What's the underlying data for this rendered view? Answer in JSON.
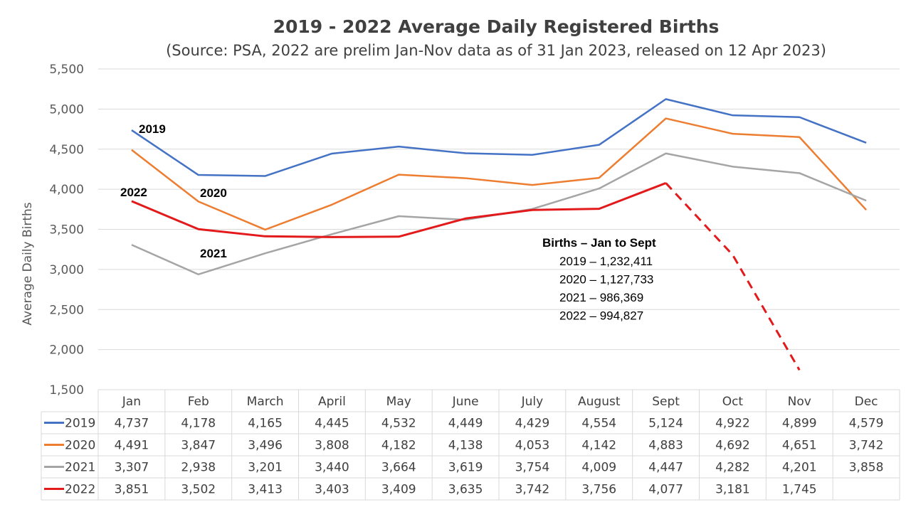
{
  "chart_data": {
    "type": "line",
    "title": "2019 - 2022 Average Daily Registered Births",
    "subtitle": "(Source: PSA, 2022 are prelim Jan-Nov data as of 31 Jan 2023, released on 12 Apr 2023)",
    "xlabel": "",
    "ylabel": "Average Daily Births",
    "ylim": [
      1500,
      5500
    ],
    "yticks": [
      1500,
      2000,
      2500,
      3000,
      3500,
      4000,
      4500,
      5000,
      5500
    ],
    "ytick_labels": [
      "1,500",
      "2,000",
      "2,500",
      "3,000",
      "3,500",
      "4,000",
      "4,500",
      "5,000",
      "5,500"
    ],
    "grid": true,
    "legend": "data-table",
    "categories": [
      "Jan",
      "Feb",
      "March",
      "April",
      "May",
      "June",
      "July",
      "August",
      "Sept",
      "Oct",
      "Nov",
      "Dec"
    ],
    "series": [
      {
        "name": "2019",
        "color": "#4472C4",
        "style": "solid",
        "values": [
          4737,
          4178,
          4165,
          4445,
          4532,
          4449,
          4429,
          4554,
          5124,
          4922,
          4899,
          4579
        ],
        "labels": [
          "4,737",
          "4,178",
          "4,165",
          "4,445",
          "4,532",
          "4,449",
          "4,429",
          "4,554",
          "5,124",
          "4,922",
          "4,899",
          "4,579"
        ]
      },
      {
        "name": "2020",
        "color": "#ED7D31",
        "style": "solid",
        "values": [
          4491,
          3847,
          3496,
          3808,
          4182,
          4138,
          4053,
          4142,
          4883,
          4692,
          4651,
          3742
        ],
        "labels": [
          "4,491",
          "3,847",
          "3,496",
          "3,808",
          "4,182",
          "4,138",
          "4,053",
          "4,142",
          "4,883",
          "4,692",
          "4,651",
          "3,742"
        ]
      },
      {
        "name": "2021",
        "color": "#A5A5A5",
        "style": "solid",
        "values": [
          3307,
          2938,
          3201,
          3440,
          3664,
          3619,
          3754,
          4009,
          4447,
          4282,
          4201,
          3858
        ],
        "labels": [
          "3,307",
          "2,938",
          "3,201",
          "3,440",
          "3,664",
          "3,619",
          "3,754",
          "4,009",
          "4,447",
          "4,282",
          "4,201",
          "3,858"
        ]
      },
      {
        "name": "2022",
        "color": "#E31A1C",
        "style": "solid-then-dashed",
        "dashed_from_index": 8,
        "values": [
          3851,
          3502,
          3413,
          3403,
          3409,
          3635,
          3742,
          3756,
          4077,
          3181,
          1745,
          null
        ],
        "labels": [
          "3,851",
          "3,502",
          "3,413",
          "3,403",
          "3,409",
          "3,635",
          "3,742",
          "3,756",
          "4,077",
          "3,181",
          "1,745",
          ""
        ]
      }
    ],
    "series_labels": [
      "2019",
      "2020",
      "2021",
      "2022"
    ],
    "annotation": {
      "title": "Births – Jan to Sept",
      "lines": [
        "2019 – 1,232,411",
        "2020 – 1,127,733",
        "2021 – 986,369",
        "2022 – 994,827"
      ]
    }
  }
}
